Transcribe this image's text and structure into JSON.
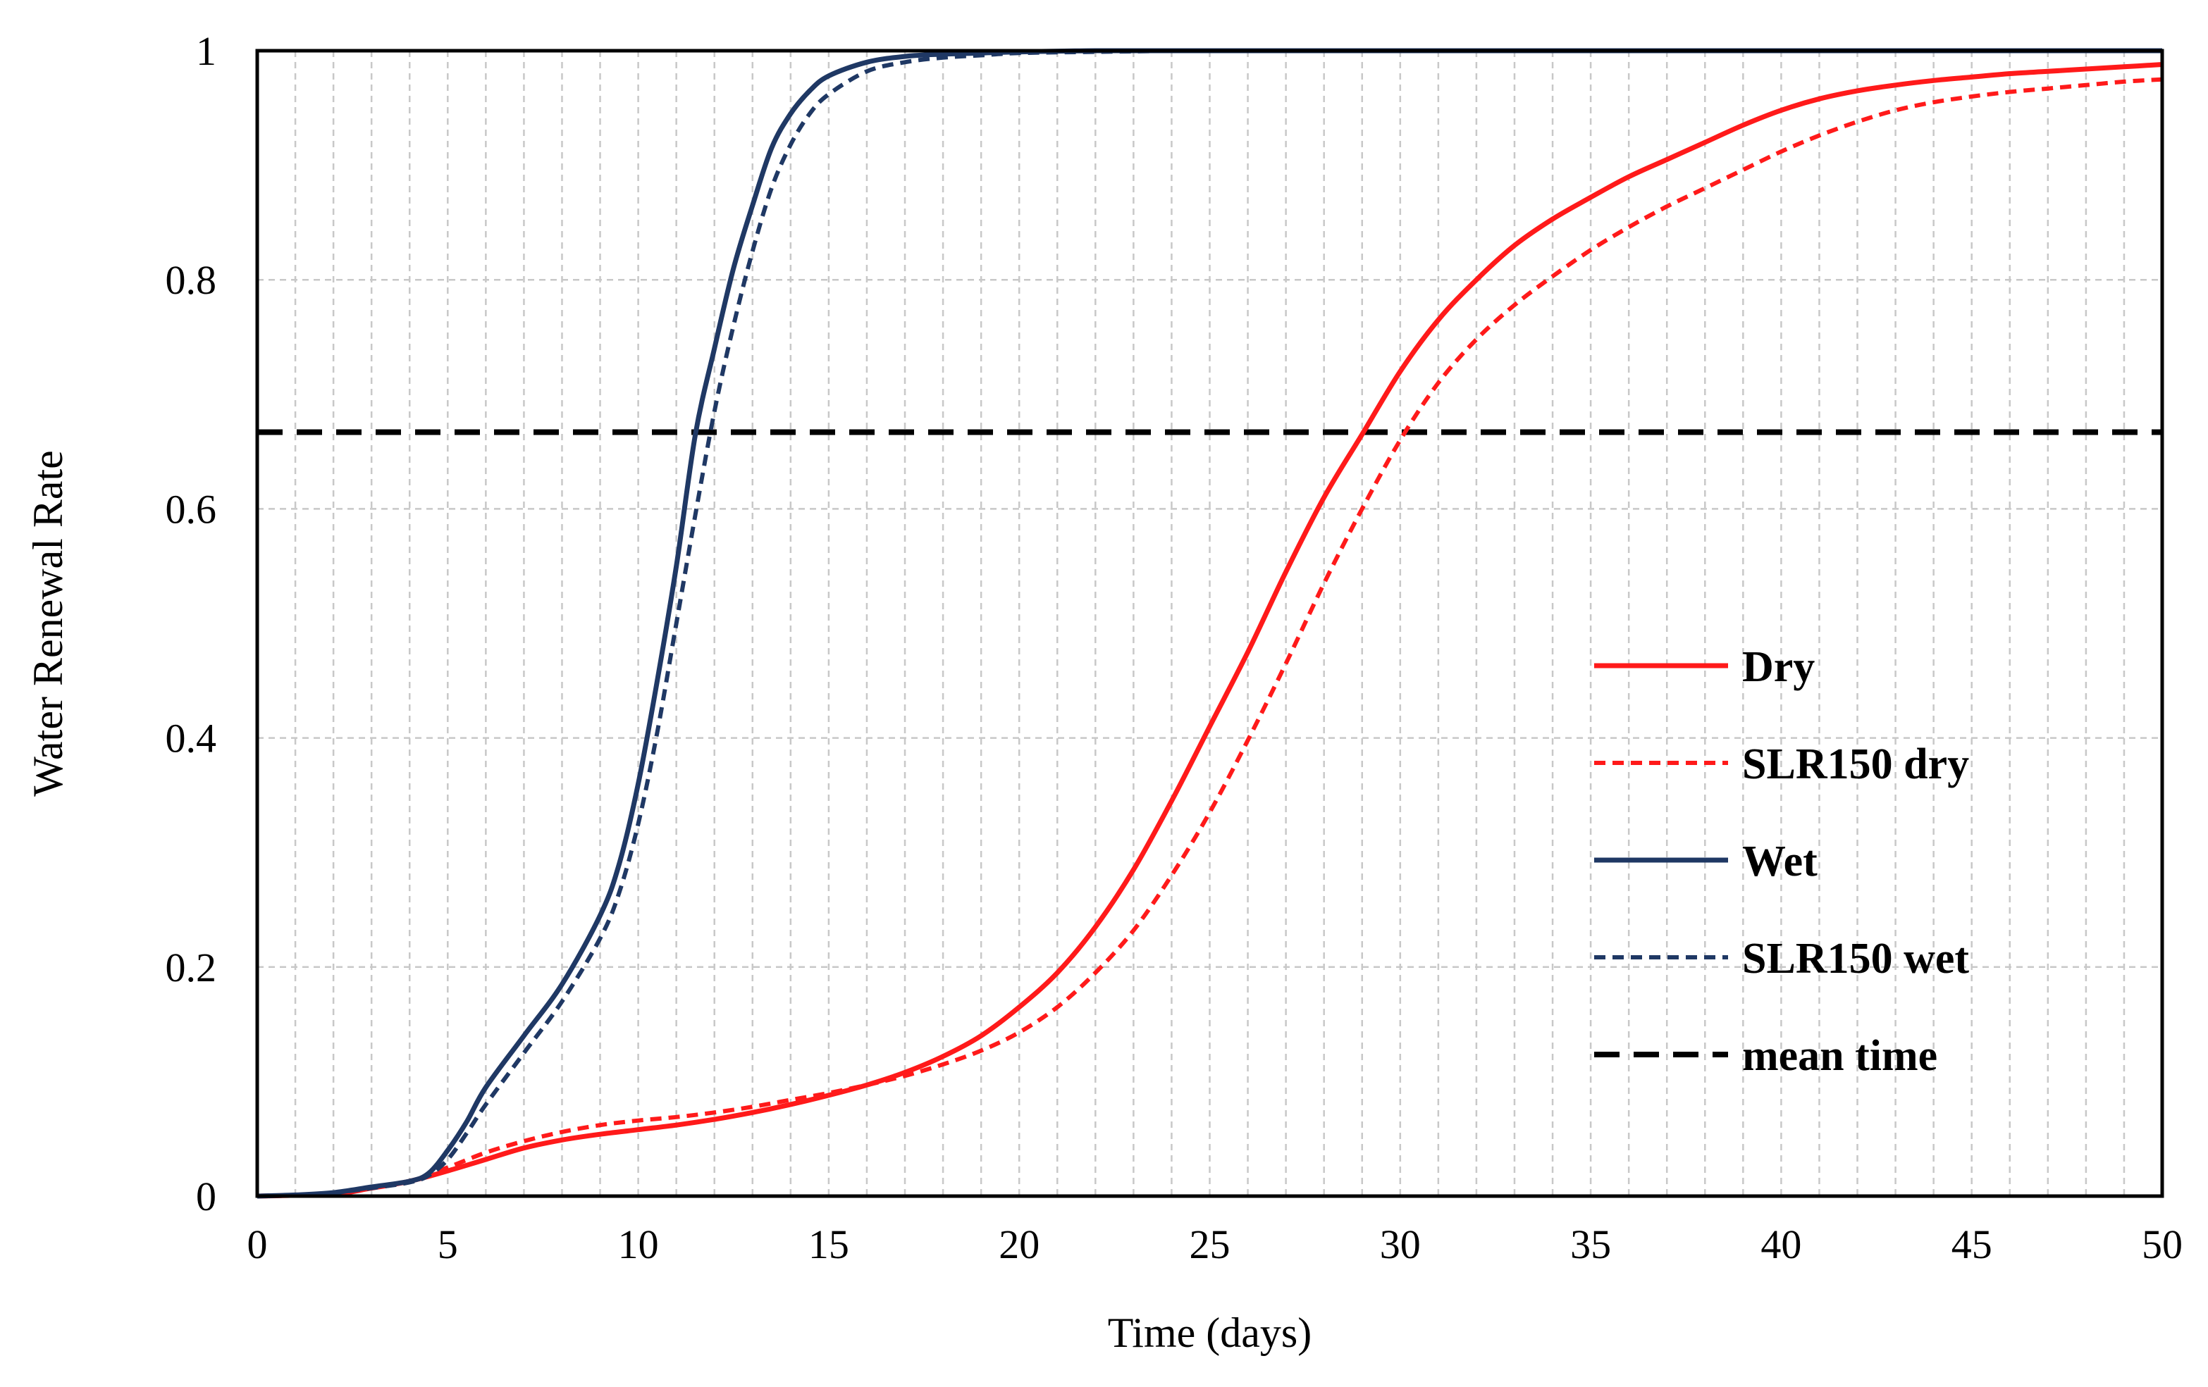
{
  "chart_data": {
    "type": "line",
    "title": "",
    "xlabel": "Time (days)",
    "ylabel": "Water Renewal Rate",
    "xlim": [
      0,
      50
    ],
    "ylim": [
      0,
      1
    ],
    "x_ticks": [
      0,
      5,
      10,
      15,
      20,
      25,
      30,
      35,
      40,
      45,
      50
    ],
    "x_tick_labels": [
      "0",
      "5",
      "10",
      "15",
      "20",
      "25",
      "30",
      "35",
      "40",
      "45",
      "50"
    ],
    "y_ticks": [
      0,
      0.2,
      0.4,
      0.6,
      0.8,
      1
    ],
    "y_tick_labels": [
      "0",
      "0.2",
      "0.4",
      "0.6",
      "0.8",
      "1"
    ],
    "grid": {
      "vertical_every_days": 1,
      "horizontal_every": 0.2
    },
    "legend_position": "lower-right",
    "series": [
      {
        "name": "Dry",
        "color": "#ff1a1a",
        "dash": "solid",
        "x": [
          0,
          2,
          3,
          4,
          5,
          6,
          7,
          8,
          9,
          10,
          11,
          12,
          13,
          14,
          15,
          16,
          17,
          18,
          19,
          20,
          21,
          22,
          23,
          24,
          25,
          26,
          27,
          28,
          29,
          30,
          31,
          32,
          33,
          34,
          35,
          36,
          37,
          38,
          39,
          40,
          41,
          42,
          43,
          44,
          45,
          46,
          47,
          48,
          49,
          50
        ],
        "y": [
          0,
          0.002,
          0.007,
          0.013,
          0.022,
          0.032,
          0.042,
          0.049,
          0.054,
          0.058,
          0.062,
          0.067,
          0.073,
          0.08,
          0.088,
          0.097,
          0.108,
          0.122,
          0.14,
          0.165,
          0.195,
          0.235,
          0.285,
          0.345,
          0.41,
          0.475,
          0.545,
          0.61,
          0.665,
          0.72,
          0.765,
          0.8,
          0.83,
          0.853,
          0.872,
          0.89,
          0.905,
          0.92,
          0.935,
          0.948,
          0.958,
          0.965,
          0.97,
          0.974,
          0.977,
          0.98,
          0.982,
          0.984,
          0.986,
          0.988
        ]
      },
      {
        "name": "SLR150 dry",
        "color": "#ff1a1a",
        "dash": "dashed",
        "x": [
          0,
          2,
          3,
          4,
          5,
          6,
          7,
          8,
          9,
          10,
          11,
          12,
          13,
          14,
          15,
          16,
          17,
          18,
          19,
          20,
          21,
          22,
          23,
          24,
          25,
          26,
          27,
          28,
          29,
          30,
          31,
          32,
          33,
          34,
          35,
          36,
          37,
          38,
          39,
          40,
          41,
          42,
          43,
          44,
          45,
          46,
          47,
          48,
          49,
          50
        ],
        "y": [
          0,
          0.002,
          0.007,
          0.013,
          0.025,
          0.038,
          0.048,
          0.056,
          0.062,
          0.066,
          0.069,
          0.073,
          0.078,
          0.084,
          0.09,
          0.097,
          0.105,
          0.115,
          0.127,
          0.143,
          0.165,
          0.195,
          0.232,
          0.28,
          0.335,
          0.398,
          0.465,
          0.535,
          0.6,
          0.66,
          0.71,
          0.748,
          0.778,
          0.803,
          0.826,
          0.846,
          0.864,
          0.88,
          0.896,
          0.912,
          0.926,
          0.938,
          0.948,
          0.955,
          0.96,
          0.964,
          0.967,
          0.97,
          0.973,
          0.975
        ]
      },
      {
        "name": "Wet",
        "color": "#1f3864",
        "dash": "solid",
        "x": [
          0,
          1,
          2,
          3,
          4,
          4.5,
          5,
          5.5,
          6,
          7,
          8,
          9,
          9.5,
          10,
          10.5,
          11,
          11.5,
          12,
          12.5,
          13,
          13.5,
          14,
          14.5,
          15,
          16,
          17,
          18,
          19,
          20,
          22,
          25,
          30,
          40,
          50
        ],
        "y": [
          0,
          0.001,
          0.003,
          0.008,
          0.013,
          0.02,
          0.04,
          0.065,
          0.095,
          0.14,
          0.185,
          0.245,
          0.29,
          0.36,
          0.45,
          0.55,
          0.665,
          0.74,
          0.81,
          0.865,
          0.915,
          0.945,
          0.965,
          0.978,
          0.99,
          0.995,
          0.997,
          0.998,
          0.999,
          1.0,
          1.0,
          1.0,
          1.0,
          1.0
        ]
      },
      {
        "name": "SLR150 wet",
        "color": "#1f3864",
        "dash": "dashed",
        "x": [
          0,
          1,
          2,
          3,
          4,
          4.5,
          5,
          5.5,
          6,
          7,
          8,
          9,
          9.5,
          10,
          10.5,
          11,
          11.5,
          12,
          12.5,
          13,
          13.5,
          14,
          14.5,
          15,
          16,
          17,
          18,
          19,
          20,
          22,
          25,
          30,
          40,
          50
        ],
        "y": [
          0,
          0.001,
          0.003,
          0.007,
          0.012,
          0.018,
          0.032,
          0.055,
          0.08,
          0.125,
          0.17,
          0.225,
          0.265,
          0.325,
          0.405,
          0.5,
          0.595,
          0.685,
          0.76,
          0.825,
          0.88,
          0.918,
          0.945,
          0.962,
          0.982,
          0.99,
          0.994,
          0.996,
          0.998,
          0.999,
          1.0,
          1.0,
          1.0,
          1.0
        ]
      },
      {
        "name": "mean time",
        "color": "#000000",
        "dash": "dashed-long",
        "x": [
          0,
          50
        ],
        "y": [
          0.667,
          0.667
        ]
      }
    ]
  }
}
